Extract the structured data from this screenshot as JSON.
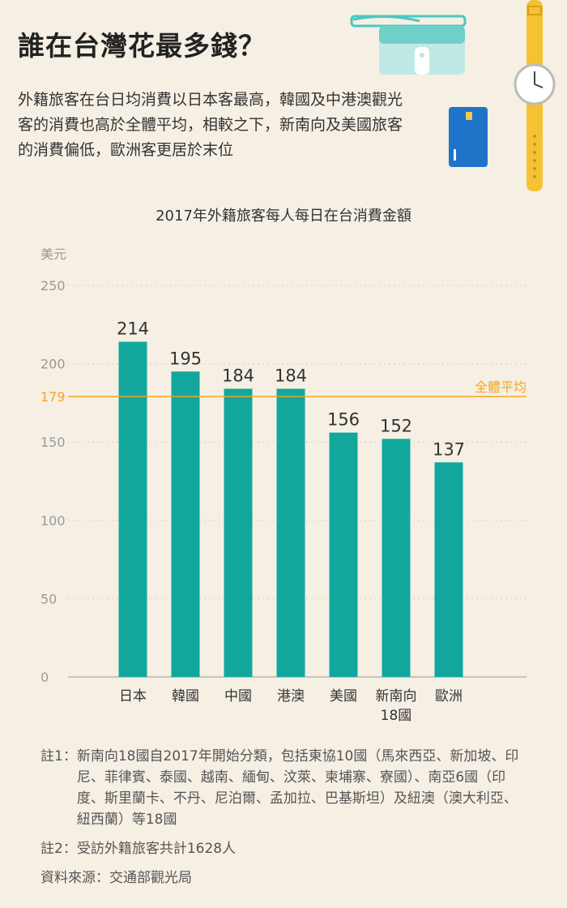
{
  "header": {
    "title": "誰在台灣花最多錢？",
    "subtitle": "外籍旅客在台日均消費以日本客最高，韓國及中港澳觀光客的消費也高於全體平均，相較之下，新南向及美國旅客的消費偏低，歐洲客更居於末位"
  },
  "chart_data": {
    "type": "bar",
    "title": "2017年外籍旅客每人每日在台消費金額",
    "ylabel": "美元",
    "xlabel": "",
    "ylim": [
      0,
      250
    ],
    "yticks": [
      0,
      50,
      100,
      150,
      200,
      250
    ],
    "categories": [
      [
        "日本"
      ],
      [
        "韓國"
      ],
      [
        "中國"
      ],
      [
        "港澳"
      ],
      [
        "美國"
      ],
      [
        "新南向",
        "18國"
      ],
      [
        "歐洲"
      ]
    ],
    "values": [
      214,
      195,
      184,
      184,
      156,
      152,
      137
    ],
    "reference_line": {
      "value": 179,
      "label": "全體平均"
    },
    "grid": true,
    "colors": {
      "bar": "#12a79d",
      "reference": "#f5a623",
      "reference_text": "#f5a623"
    }
  },
  "notes": [
    {
      "label": "註1：",
      "text": "新南向18國自2017年開始分類，包括東協10國（馬來西亞、新加坡、印尼、菲律賓、泰國、越南、緬甸、汶萊、柬埔寨、寮國）、南亞6國（印度、斯里蘭卡、不丹、尼泊爾、孟加拉、巴基斯坦）及紐澳（澳大利亞、紐西蘭）等18國"
    },
    {
      "label": "註2：",
      "text": "受訪外籍旅客共計1628人"
    }
  ],
  "source": "資料來源：交通部觀光局",
  "decor": {
    "icons": [
      "wallet-icon",
      "credit-card-icon",
      "wristwatch-icon"
    ]
  }
}
